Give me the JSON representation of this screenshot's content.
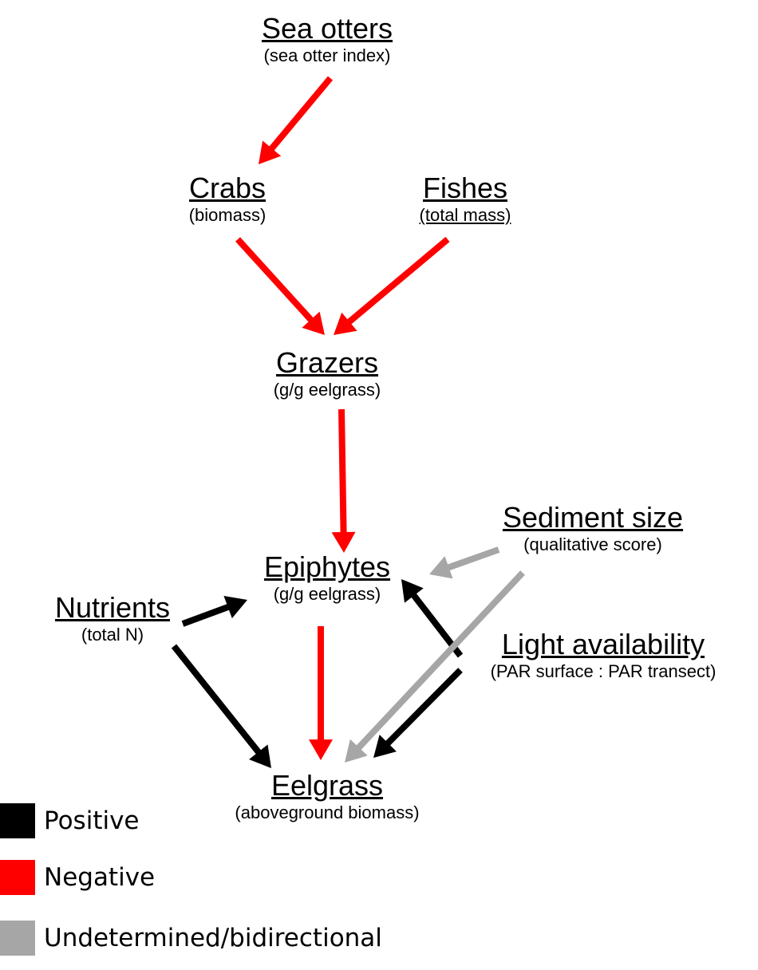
{
  "colors": {
    "positive": "#000000",
    "negative": "#ff0000",
    "undetermined": "#a6a6a6"
  },
  "nodes": {
    "sea_otters": {
      "title": "Sea otters",
      "sub": "(sea otter index)"
    },
    "crabs": {
      "title": "Crabs",
      "sub": "(biomass)"
    },
    "fishes": {
      "title": "Fishes",
      "sub": "(total mass)"
    },
    "grazers": {
      "title": "Grazers",
      "sub": "(g/g eelgrass)"
    },
    "sediment": {
      "title": "Sediment size",
      "sub": "(qualitative score)"
    },
    "epiphytes": {
      "title": "Epiphytes",
      "sub": "(g/g eelgrass)"
    },
    "nutrients": {
      "title": "Nutrients",
      "sub": "(total N)"
    },
    "light": {
      "title": "Light availability",
      "sub": "(PAR surface : PAR transect)"
    },
    "eelgrass": {
      "title": "Eelgrass",
      "sub": "(aboveground biomass)"
    }
  },
  "edges": [
    {
      "from": "sea_otters",
      "to": "crabs",
      "effect": "negative"
    },
    {
      "from": "crabs",
      "to": "grazers",
      "effect": "negative"
    },
    {
      "from": "fishes",
      "to": "grazers",
      "effect": "negative"
    },
    {
      "from": "grazers",
      "to": "epiphytes",
      "effect": "negative"
    },
    {
      "from": "epiphytes",
      "to": "eelgrass",
      "effect": "negative"
    },
    {
      "from": "nutrients",
      "to": "epiphytes",
      "effect": "positive"
    },
    {
      "from": "nutrients",
      "to": "eelgrass",
      "effect": "positive"
    },
    {
      "from": "light",
      "to": "epiphytes",
      "effect": "positive"
    },
    {
      "from": "light",
      "to": "eelgrass",
      "effect": "positive"
    },
    {
      "from": "sediment",
      "to": "epiphytes",
      "effect": "undetermined"
    },
    {
      "from": "sediment",
      "to": "eelgrass",
      "effect": "undetermined"
    }
  ],
  "legend": {
    "positive": "Positive",
    "negative": "Negative",
    "undetermined": "Undetermined/bidirectional"
  }
}
